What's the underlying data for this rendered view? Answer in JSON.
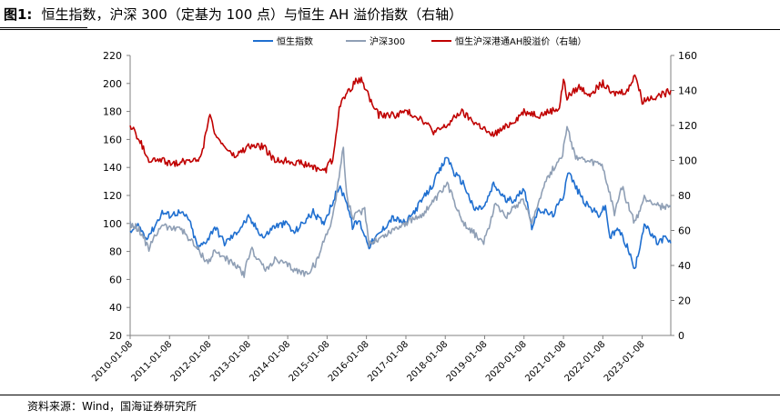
{
  "figure": {
    "number": "图1:",
    "title": "恒生指数，沪深 300（定基为 100 点）与恒生 AH 溢价指数（右轴）"
  },
  "source_note": "资料来源：Wind，国海证券研究所",
  "colors": {
    "hsi": "#1f6fd0",
    "csi300": "#8f9fb5",
    "ah_premium": "#c00000",
    "axis": "#808080"
  },
  "chart_data": {
    "type": "line",
    "title": "",
    "legend_position": "top",
    "grid": false,
    "x_tick_labels": [
      "2010-01-08",
      "2011-01-08",
      "2012-01-08",
      "2013-01-08",
      "2014-01-08",
      "2015-01-08",
      "2016-01-08",
      "2017-01-08",
      "2018-01-08",
      "2019-01-08",
      "2020-01-08",
      "2021-01-08",
      "2022-01-08",
      "2023-01-08"
    ],
    "x_range": [
      "2010-01-08",
      "2023-09-30"
    ],
    "y_left": {
      "min": 20,
      "max": 220,
      "step": 20,
      "ticks": [
        20,
        40,
        60,
        80,
        100,
        120,
        140,
        160,
        180,
        200,
        220
      ]
    },
    "y_right": {
      "min": 0,
      "max": 160,
      "step": 20,
      "ticks": [
        0,
        20,
        40,
        60,
        80,
        100,
        120,
        140,
        160
      ]
    },
    "series": [
      {
        "name": "恒生指数",
        "axis": "left",
        "color": "#1f6fd0",
        "points": [
          [
            "2010-01-08",
            94
          ],
          [
            "2010-04-01",
            98
          ],
          [
            "2010-06-01",
            90
          ],
          [
            "2010-08-01",
            95
          ],
          [
            "2010-11-01",
            108
          ],
          [
            "2011-01-08",
            106
          ],
          [
            "2011-04-01",
            108
          ],
          [
            "2011-07-01",
            104
          ],
          [
            "2011-10-01",
            82
          ],
          [
            "2012-01-08",
            90
          ],
          [
            "2012-03-01",
            98
          ],
          [
            "2012-06-01",
            86
          ],
          [
            "2012-09-01",
            92
          ],
          [
            "2013-01-08",
            104
          ],
          [
            "2013-06-01",
            90
          ],
          [
            "2013-09-01",
            98
          ],
          [
            "2014-01-08",
            100
          ],
          [
            "2014-03-01",
            93
          ],
          [
            "2014-09-01",
            108
          ],
          [
            "2014-12-01,",
            100
          ],
          [
            "2015-01-08",
            106
          ],
          [
            "2015-04-28",
            126
          ],
          [
            "2015-07-01",
            118
          ],
          [
            "2015-09-01",
            98
          ],
          [
            "2015-11-01",
            102
          ],
          [
            "2016-02-01",
            84
          ],
          [
            "2016-05-01",
            92
          ],
          [
            "2016-09-01",
            104
          ],
          [
            "2017-01-08",
            100
          ],
          [
            "2017-06-01",
            116
          ],
          [
            "2017-09-01",
            126
          ],
          [
            "2018-01-26",
            148
          ],
          [
            "2018-04-01",
            136
          ],
          [
            "2018-07-01",
            128
          ],
          [
            "2018-10-01",
            110
          ],
          [
            "2019-01-08",
            112
          ],
          [
            "2019-04-01",
            128
          ],
          [
            "2019-08-01",
            116
          ],
          [
            "2019-11-01",
            118
          ],
          [
            "2020-01-08",
            126
          ],
          [
            "2020-03-20",
            98
          ],
          [
            "2020-06-01",
            110
          ],
          [
            "2020-10-01",
            106
          ],
          [
            "2021-01-08",
            120
          ],
          [
            "2021-02-18",
            138
          ],
          [
            "2021-05-01",
            126
          ],
          [
            "2021-08-01",
            114
          ],
          [
            "2021-12-01",
            106
          ],
          [
            "2022-02-01",
            112
          ],
          [
            "2022-03-15",
            90
          ],
          [
            "2022-06-01",
            96
          ],
          [
            "2022-09-01",
            82
          ],
          [
            "2022-10-31",
            66
          ],
          [
            "2023-01-27",
            100
          ],
          [
            "2023-04-01",
            92
          ],
          [
            "2023-06-01",
            86
          ],
          [
            "2023-08-01",
            90
          ],
          [
            "2023-09-30",
            86
          ]
        ]
      },
      {
        "name": "沪深300",
        "axis": "left",
        "color": "#8f9fb5",
        "points": [
          [
            "2010-01-08",
            100
          ],
          [
            "2010-04-01",
            96
          ],
          [
            "2010-07-01",
            82
          ],
          [
            "2010-11-01",
            100
          ],
          [
            "2011-01-08",
            96
          ],
          [
            "2011-04-01",
            98
          ],
          [
            "2011-07-01",
            90
          ],
          [
            "2011-12-31",
            72
          ],
          [
            "2012-03-01",
            80
          ],
          [
            "2012-06-01",
            76
          ],
          [
            "2012-11-30",
            64
          ],
          [
            "2013-02-01",
            82
          ],
          [
            "2013-06-25",
            66
          ],
          [
            "2013-09-01",
            74
          ],
          [
            "2014-01-08",
            70
          ],
          [
            "2014-04-01",
            66
          ],
          [
            "2014-07-01",
            64
          ],
          [
            "2014-10-01",
            72
          ],
          [
            "2015-01-08",
            94
          ],
          [
            "2015-03-01",
            104
          ],
          [
            "2015-06-08",
            154
          ],
          [
            "2015-07-08",
            120
          ],
          [
            "2015-09-01",
            104
          ],
          [
            "2015-12-23",
            110
          ],
          [
            "2016-02-01",
            86
          ],
          [
            "2016-06-01",
            90
          ],
          [
            "2016-11-01",
            98
          ],
          [
            "2017-01-08",
            100
          ],
          [
            "2017-06-01",
            106
          ],
          [
            "2017-10-01",
            116
          ],
          [
            "2018-01-26",
            128
          ],
          [
            "2018-04-01",
            116
          ],
          [
            "2018-07-01",
            100
          ],
          [
            "2018-12-31",
            86
          ],
          [
            "2019-04-19",
            114
          ],
          [
            "2019-08-01",
            106
          ],
          [
            "2019-12-31",
            118
          ],
          [
            "2020-03-23",
            100
          ],
          [
            "2020-07-10",
            128
          ],
          [
            "2020-12-31",
            150
          ],
          [
            "2021-02-10",
            168
          ],
          [
            "2021-05-01",
            148
          ],
          [
            "2021-08-01",
            144
          ],
          [
            "2021-12-31",
            142
          ],
          [
            "2022-04-26",
            108
          ],
          [
            "2022-07-04",
            126
          ],
          [
            "2022-10-31",
            100
          ],
          [
            "2023-01-27",
            118
          ],
          [
            "2023-04-01",
            116
          ],
          [
            "2023-07-01",
            112
          ],
          [
            "2023-09-30",
            112
          ]
        ]
      },
      {
        "name": "恒生沪深港通AH股溢价（右轴）",
        "axis": "right",
        "color": "#c00000",
        "points": [
          [
            "2010-01-08",
            120
          ],
          [
            "2010-04-01",
            112
          ],
          [
            "2010-07-01",
            100
          ],
          [
            "2010-11-01",
            100
          ],
          [
            "2011-01-08",
            98
          ],
          [
            "2011-07-01",
            100
          ],
          [
            "2011-11-01",
            102
          ],
          [
            "2012-01-08",
            126
          ],
          [
            "2012-04-01",
            112
          ],
          [
            "2012-09-01",
            102
          ],
          [
            "2013-01-08",
            108
          ],
          [
            "2013-06-01",
            108
          ],
          [
            "2013-09-01",
            100
          ],
          [
            "2014-01-08",
            100
          ],
          [
            "2014-06-01",
            98
          ],
          [
            "2014-12-31",
            94
          ],
          [
            "2015-01-08",
            98
          ],
          [
            "2015-03-01",
            100
          ],
          [
            "2015-05-01",
            130
          ],
          [
            "2015-07-01",
            138
          ],
          [
            "2015-10-01",
            145
          ],
          [
            "2015-12-01",
            146
          ],
          [
            "2016-03-01",
            132
          ],
          [
            "2016-05-01",
            126
          ],
          [
            "2016-10-01",
            126
          ],
          [
            "2017-01-08",
            128
          ],
          [
            "2017-06-01",
            124
          ],
          [
            "2017-10-01",
            116
          ],
          [
            "2018-01-26",
            120
          ],
          [
            "2018-06-01",
            128
          ],
          [
            "2018-10-01",
            122
          ],
          [
            "2019-01-08",
            118
          ],
          [
            "2019-03-01",
            114
          ],
          [
            "2019-07-01",
            118
          ],
          [
            "2019-11-01",
            124
          ],
          [
            "2020-01-08",
            128
          ],
          [
            "2020-06-01",
            126
          ],
          [
            "2020-12-01",
            130
          ],
          [
            "2021-01-08",
            146
          ],
          [
            "2021-02-10",
            136
          ],
          [
            "2021-06-01",
            142
          ],
          [
            "2021-09-01",
            138
          ],
          [
            "2022-01-08",
            144
          ],
          [
            "2022-04-01",
            138
          ],
          [
            "2022-09-01",
            140
          ],
          [
            "2022-11-01",
            150
          ],
          [
            "2023-01-08",
            134
          ],
          [
            "2023-04-01",
            136
          ],
          [
            "2023-08-01",
            138
          ],
          [
            "2023-09-30",
            140
          ]
        ]
      }
    ]
  }
}
